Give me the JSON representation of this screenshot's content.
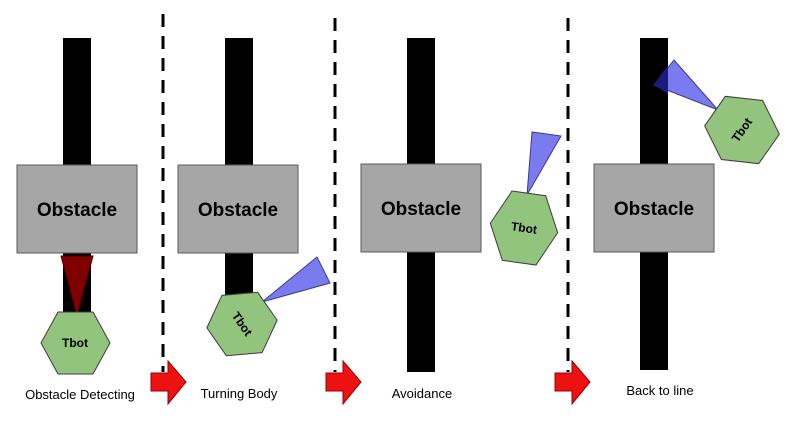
{
  "obstacle_label": "Obstacle",
  "robot_label": "Tbot",
  "colors": {
    "line": "#000000",
    "obstacle_fill": "#a6a6a6",
    "obstacle_stroke": "#595959",
    "robot_fill": "#93c47d",
    "robot_stroke": "#3c3c3c",
    "beam_detecting": "#7f0000",
    "beam_normal": "#7b7bf0",
    "arrow": "#ee1111",
    "divider": "#000000"
  },
  "panels": [
    {
      "caption": "Obstacle Detecting"
    },
    {
      "caption": "Turning Body"
    },
    {
      "caption": "Avoidance"
    },
    {
      "caption": "Back to line"
    }
  ]
}
